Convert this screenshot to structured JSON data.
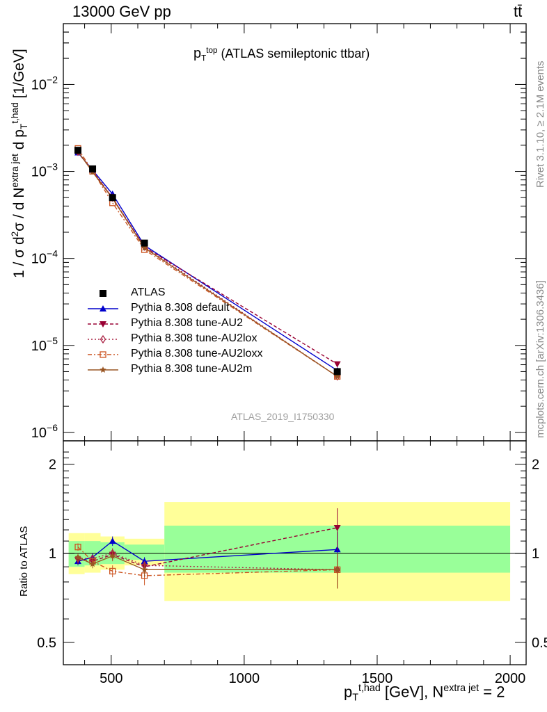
{
  "header": {
    "energy_label": "13000 GeV pp",
    "process_label": "tt̄"
  },
  "side_labels": {
    "rivet": "Rivet 3.1.10, ≥ 2.1M events",
    "mcplots": "mcplots.cern.ch [arXiv:1306.3436]"
  },
  "analysis_id": "ATLAS_2019_I1750330",
  "chart_data": {
    "type": "line",
    "title": {
      "symbol": "p",
      "sub": "T",
      "sup": "top",
      "text": "(ATLAS semileptonic ttbar)"
    },
    "xlabel": {
      "symbol": "p",
      "sub": "T",
      "sup": "t,had",
      "unit": "[GeV], N",
      "sup2": "extra jet",
      "tail": " = 2"
    },
    "ylabel": {
      "pre": "1 / σ d",
      "sup1": "2",
      "mid": "σ / d N",
      "sup2": "extra jet",
      "mid2": " d p",
      "sub3": "T",
      "sup3": "t,had",
      "unit": " [1/GeV]"
    },
    "ratio_ylabel": "Ratio to ATLAS",
    "xlim": [
      320,
      2060
    ],
    "ylim": [
      8e-07,
      0.05
    ],
    "yscale": "log",
    "ratio_ylim": [
      0.42,
      2.4
    ],
    "ratio_yscale": "log",
    "x_ticks": [
      500,
      1000,
      1500,
      2000
    ],
    "y_ticks": [
      {
        "value": 1e-06,
        "mant": "10",
        "exp": "−6"
      },
      {
        "value": 1e-05,
        "mant": "10",
        "exp": "−5"
      },
      {
        "value": 0.0001,
        "mant": "10",
        "exp": "−4"
      },
      {
        "value": 0.001,
        "mant": "10",
        "exp": "−3"
      },
      {
        "value": 0.01,
        "mant": "10",
        "exp": "−2"
      }
    ],
    "ratio_ticks": [
      0.5,
      1,
      2
    ],
    "data": {
      "name": "ATLAS",
      "x": [
        375,
        430,
        505,
        625,
        1350
      ],
      "y": [
        0.00175,
        0.00107,
        0.0005,
        0.00015,
        5e-06
      ],
      "bins": [
        [
          340,
          400
        ],
        [
          400,
          460
        ],
        [
          460,
          550
        ],
        [
          550,
          700
        ],
        [
          700,
          2000
        ]
      ],
      "band_green": [
        [
          0.9,
          1.1
        ],
        [
          0.91,
          1.1
        ],
        [
          0.92,
          1.09
        ],
        [
          0.95,
          1.07
        ],
        [
          0.86,
          1.24
        ]
      ],
      "band_yellow": [
        [
          0.85,
          1.17
        ],
        [
          0.86,
          1.17
        ],
        [
          0.88,
          1.14
        ],
        [
          0.91,
          1.12
        ],
        [
          0.69,
          1.49
        ]
      ]
    },
    "series": [
      {
        "name": "Pythia 8.308 default",
        "color": "#0000cc",
        "marker": "triangle-up",
        "dash": "",
        "x": [
          375,
          430,
          505,
          625,
          1350
        ],
        "ratio": [
          0.94,
          0.97,
          1.1,
          0.94,
          1.03
        ],
        "err": [
          0.03,
          0.03,
          0.04,
          0.03,
          0.15
        ]
      },
      {
        "name": "Pythia 8.308 tune-AU2",
        "color": "#990033",
        "marker": "triangle-down",
        "dash": "5,3",
        "x": [
          375,
          430,
          505,
          625,
          1350
        ],
        "ratio": [
          0.95,
          0.94,
          0.99,
          0.9,
          1.22
        ],
        "err": [
          0.03,
          0.03,
          0.04,
          0.03,
          0.2
        ]
      },
      {
        "name": "Pythia 8.308 tune-AU2lox",
        "color": "#aa2244",
        "marker": "diamond",
        "dash": "2,3",
        "x": [
          375,
          430,
          505,
          625,
          1350
        ],
        "ratio": [
          0.96,
          0.96,
          1.0,
          0.91,
          0.88
        ],
        "err": [
          0.03,
          0.03,
          0.04,
          0.03,
          0.12
        ]
      },
      {
        "name": "Pythia 8.308 tune-AU2loxx",
        "color": "#cc5522",
        "marker": "square-open",
        "dash": "6,3,2,3",
        "x": [
          375,
          430,
          505,
          625,
          1350
        ],
        "ratio": [
          1.05,
          0.94,
          0.87,
          0.84,
          0.88
        ],
        "err": [
          0.03,
          0.03,
          0.04,
          0.06,
          0.12
        ]
      },
      {
        "name": "Pythia 8.308 tune-AU2m",
        "color": "#995522",
        "marker": "star",
        "dash": "",
        "x": [
          375,
          430,
          505,
          625,
          1350
        ],
        "ratio": [
          0.97,
          0.92,
          0.98,
          0.88,
          0.88
        ],
        "err": [
          0.03,
          0.03,
          0.04,
          0.05,
          0.12
        ]
      }
    ]
  }
}
